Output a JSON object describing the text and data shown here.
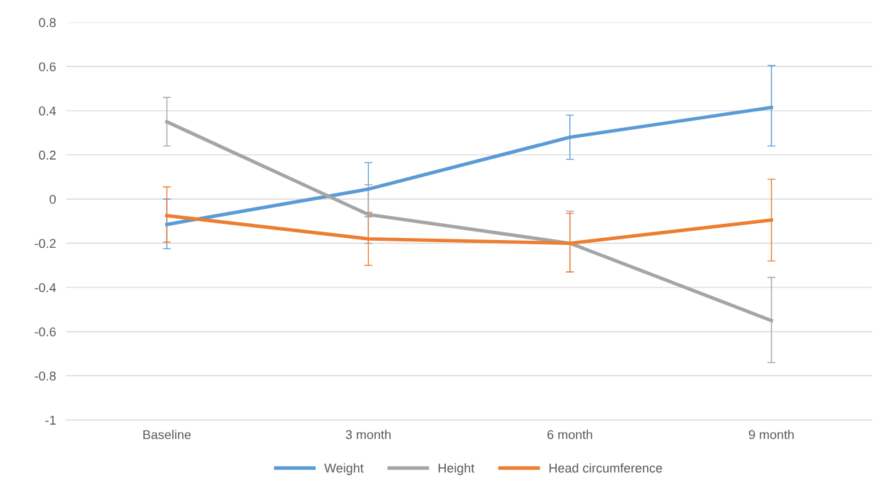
{
  "chart_data": {
    "type": "line",
    "categories": [
      "Baseline",
      "3 month",
      "6 month",
      "9 month"
    ],
    "series": [
      {
        "name": "Weight",
        "color": "#5b9bd5",
        "values": [
          -0.115,
          0.045,
          0.28,
          0.415
        ],
        "errors": [
          [
            -0.225,
            0.0
          ],
          [
            -0.08,
            0.165
          ],
          [
            0.18,
            0.38
          ],
          [
            0.24,
            0.605
          ]
        ]
      },
      {
        "name": "Height",
        "color": "#a5a5a5",
        "values": [
          0.35,
          -0.07,
          -0.2,
          -0.55
        ],
        "errors": [
          [
            0.24,
            0.46
          ],
          [
            -0.2,
            0.065
          ],
          [
            -0.33,
            -0.055
          ],
          [
            -0.74,
            -0.355
          ]
        ]
      },
      {
        "name": "Head circumference",
        "color": "#ed7d31",
        "values": [
          -0.075,
          -0.18,
          -0.2,
          -0.095
        ],
        "errors": [
          [
            -0.195,
            0.055
          ],
          [
            -0.3,
            -0.06
          ],
          [
            -0.33,
            -0.065
          ],
          [
            -0.28,
            0.09
          ]
        ]
      }
    ],
    "ylim": [
      -1,
      0.8
    ],
    "yticks": [
      -1,
      -0.8,
      -0.6,
      -0.4,
      -0.2,
      0,
      0.2,
      0.4,
      0.6,
      0.8
    ],
    "grid": "y",
    "legend": "bottom",
    "marker": "none",
    "line_style": "solid"
  }
}
